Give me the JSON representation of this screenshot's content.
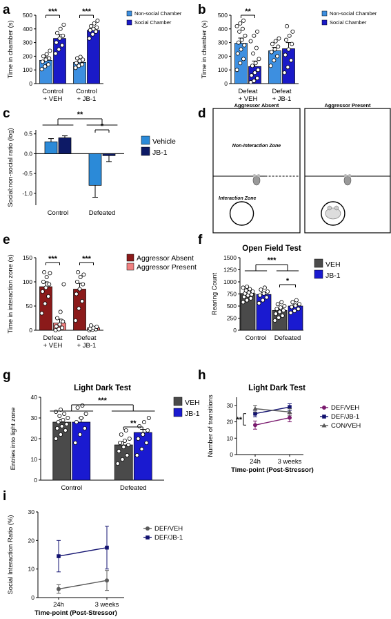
{
  "chart_data": [
    {
      "panel": "a",
      "type": "bar",
      "ylabel": "Time in chamber (s)",
      "ylim": [
        0,
        500
      ],
      "yticks": [
        0,
        100,
        200,
        300,
        400,
        500
      ],
      "categories": [
        "Control\n+ VEH",
        "Control\n+ JB-1"
      ],
      "legend": [
        "Non-social Chamber",
        "Social Chamber"
      ],
      "colors": [
        "#3d8fe0",
        "#1a1ac8"
      ],
      "bars": [
        {
          "group": 0,
          "series": 0,
          "value": 170,
          "err": 25,
          "dots": [
            105,
            125,
            140,
            160,
            175,
            185,
            200,
            215,
            240
          ]
        },
        {
          "group": 0,
          "series": 1,
          "value": 330,
          "err": 28,
          "dots": [
            220,
            250,
            280,
            300,
            330,
            350,
            370,
            400,
            430
          ]
        },
        {
          "group": 1,
          "series": 0,
          "value": 155,
          "err": 18,
          "dots": [
            115,
            130,
            140,
            150,
            165,
            175,
            185,
            195
          ]
        },
        {
          "group": 1,
          "series": 1,
          "value": 390,
          "err": 20,
          "dots": [
            330,
            360,
            380,
            390,
            400,
            410,
            420,
            440,
            460
          ]
        }
      ],
      "sig": [
        {
          "group": 0,
          "text": "***"
        },
        {
          "group": 1,
          "text": "***"
        }
      ]
    },
    {
      "panel": "b",
      "type": "bar",
      "ylabel": "Time in chamber (s)",
      "ylim": [
        0,
        500
      ],
      "yticks": [
        0,
        100,
        200,
        300,
        400,
        500
      ],
      "categories": [
        "Defeat\n+ VEH",
        "Defeat\n+ JB-1"
      ],
      "legend": [
        "Non-social Chamber",
        "Social Chamber"
      ],
      "colors": [
        "#3d8fe0",
        "#1a1ac8"
      ],
      "bars": [
        {
          "group": 0,
          "series": 0,
          "value": 295,
          "err": 38,
          "dots": [
            100,
            150,
            180,
            220,
            250,
            280,
            300,
            320,
            350,
            380,
            400,
            420,
            440,
            460
          ]
        },
        {
          "group": 0,
          "series": 1,
          "value": 125,
          "err": 40,
          "dots": [
            10,
            20,
            40,
            60,
            80,
            100,
            130,
            150,
            180,
            220,
            260,
            310,
            350,
            380
          ]
        },
        {
          "group": 1,
          "series": 0,
          "value": 240,
          "err": 25,
          "dots": [
            130,
            170,
            200,
            230,
            250,
            270,
            290,
            310,
            330
          ]
        },
        {
          "group": 1,
          "series": 1,
          "value": 255,
          "err": 45,
          "dots": [
            80,
            120,
            170,
            210,
            250,
            290,
            320,
            350,
            380,
            420
          ]
        }
      ],
      "sig": [
        {
          "group": 0,
          "text": "**"
        }
      ]
    },
    {
      "panel": "c",
      "type": "bar",
      "ylabel": "Social:non-social ratio (log)",
      "ylim": [
        -1.3,
        0.6
      ],
      "yticks": [
        -1.0,
        -0.5,
        0.0,
        0.5
      ],
      "categories": [
        "Control",
        "Defeated"
      ],
      "legend": [
        "Vehicle",
        "JB-1"
      ],
      "colors": [
        "#2b8ad8",
        "#0d1a66"
      ],
      "bars": [
        {
          "group": 0,
          "series": 0,
          "value": 0.3,
          "err": 0.08
        },
        {
          "group": 0,
          "series": 1,
          "value": 0.4,
          "err": 0.05
        },
        {
          "group": 1,
          "series": 0,
          "value": -0.8,
          "err": 0.3
        },
        {
          "group": 1,
          "series": 1,
          "value": -0.05,
          "err": 0.15
        }
      ],
      "sig_outer": "**",
      "sig_inner": "*"
    },
    {
      "panel": "d",
      "type": "diagram",
      "boxes": [
        {
          "title": "Aggressor Absent",
          "upper": "Non-Interaction Zone",
          "lower": "Interaction Zone"
        },
        {
          "title": "Aggressor Present"
        }
      ]
    },
    {
      "panel": "e",
      "type": "bar",
      "ylabel": "Time in interaction zone (s)",
      "ylim": [
        0,
        150
      ],
      "yticks": [
        0,
        50,
        100,
        150
      ],
      "categories": [
        "Defeat\n+ VEH",
        "Defeat\n+ JB-1"
      ],
      "legend": [
        "Aggressor Absent",
        "Aggressor Present"
      ],
      "colors": [
        "#8b1a1a",
        "#f08080"
      ],
      "bars": [
        {
          "group": 0,
          "series": 0,
          "value": 90,
          "err": 10,
          "dots": [
            35,
            55,
            70,
            80,
            88,
            95,
            100,
            110,
            118,
            120
          ]
        },
        {
          "group": 0,
          "series": 1,
          "value": 15,
          "err": 8,
          "dots": [
            0,
            2,
            5,
            8,
            12,
            18,
            25,
            38,
            95
          ]
        },
        {
          "group": 1,
          "series": 0,
          "value": 85,
          "err": 12,
          "dots": [
            20,
            45,
            60,
            75,
            85,
            95,
            100,
            110,
            115,
            120
          ]
        },
        {
          "group": 1,
          "series": 1,
          "value": 5,
          "err": 2,
          "dots": [
            0,
            1,
            2,
            3,
            5,
            7,
            10
          ]
        }
      ],
      "sig": [
        {
          "group": 0,
          "text": "***"
        },
        {
          "group": 1,
          "text": "***"
        }
      ]
    },
    {
      "panel": "f",
      "type": "bar",
      "title": "Open Field Test",
      "ylabel": "Rearing Count",
      "ylim": [
        0,
        1500
      ],
      "yticks": [
        0,
        250,
        500,
        750,
        1000,
        1250,
        1500
      ],
      "categories": [
        "Control",
        "Defeated"
      ],
      "legend": [
        "VEH",
        "JB-1"
      ],
      "colors": [
        "#4a4a4a",
        "#1a1ad0"
      ],
      "bars": [
        {
          "group": 0,
          "series": 0,
          "value": 760,
          "err": 30,
          "dots": [
            580,
            620,
            660,
            690,
            720,
            740,
            760,
            780,
            800,
            820,
            850,
            880,
            900
          ]
        },
        {
          "group": 0,
          "series": 1,
          "value": 740,
          "err": 40,
          "dots": [
            560,
            620,
            680,
            720,
            760,
            800,
            840,
            880
          ]
        },
        {
          "group": 1,
          "series": 0,
          "value": 410,
          "err": 35,
          "dots": [
            200,
            260,
            300,
            340,
            380,
            410,
            440,
            470,
            500,
            540,
            580
          ]
        },
        {
          "group": 1,
          "series": 1,
          "value": 500,
          "err": 30,
          "dots": [
            360,
            400,
            440,
            480,
            510,
            540,
            580,
            620
          ]
        }
      ],
      "sig_outer": "***",
      "sig_inner": "*"
    },
    {
      "panel": "g",
      "type": "bar",
      "title": "Light Dark Test",
      "ylabel": "Entries into light zone",
      "ylim": [
        0,
        40
      ],
      "yticks": [
        0,
        10,
        20,
        30,
        40
      ],
      "categories": [
        "Control",
        "Defeated"
      ],
      "legend": [
        "VEH",
        "JB-1"
      ],
      "colors": [
        "#4a4a4a",
        "#1a1ad0"
      ],
      "bars": [
        {
          "group": 0,
          "series": 0,
          "value": 28,
          "err": 1.2,
          "dots": [
            20,
            22,
            24,
            25,
            26,
            27,
            28,
            29,
            30,
            31,
            32,
            33,
            34
          ]
        },
        {
          "group": 0,
          "series": 1,
          "value": 28,
          "err": 2,
          "dots": [
            18,
            22,
            25,
            28,
            30,
            32,
            35,
            36
          ]
        },
        {
          "group": 1,
          "series": 0,
          "value": 17,
          "err": 1.5,
          "dots": [
            8,
            10,
            12,
            14,
            16,
            17,
            18,
            19,
            20,
            22,
            24
          ]
        },
        {
          "group": 1,
          "series": 1,
          "value": 23,
          "err": 1.5,
          "dots": [
            12,
            15,
            18,
            20,
            22,
            24,
            26,
            28,
            30
          ]
        }
      ],
      "sig_outer": "***",
      "sig_inner": "**"
    },
    {
      "panel": "h",
      "type": "line",
      "title": "Light Dark Test",
      "ylabel": "Number of transitions",
      "xlabel": "Time-point (Post-Stressor)",
      "ylim": [
        0,
        35
      ],
      "yticks": [
        0,
        10,
        20,
        30
      ],
      "x": [
        "24h",
        "3 weeks"
      ],
      "series": [
        {
          "name": "DEF/VEH",
          "color": "#7a1a6e",
          "values": [
            18,
            22.5
          ],
          "err": [
            2.5,
            2.5
          ]
        },
        {
          "name": "DEF/JB-1",
          "color": "#121270",
          "values": [
            25,
            29
          ],
          "err": [
            2,
            2
          ]
        },
        {
          "name": "CON/VEH",
          "color": "#5a5a5a",
          "values": [
            28,
            26
          ],
          "err": [
            2,
            2
          ]
        }
      ],
      "sig": "**"
    },
    {
      "panel": "i",
      "type": "line",
      "ylabel": "Social Interaction Ratio (%)",
      "xlabel": "Time-point (Post-Stressor)",
      "ylim": [
        0,
        30
      ],
      "yticks": [
        0,
        10,
        20,
        30
      ],
      "x": [
        "24h",
        "3 weeks"
      ],
      "series": [
        {
          "name": "DEF/VEH",
          "color": "#5a5a5a",
          "values": [
            3,
            6
          ],
          "err": [
            1.5,
            3.5
          ]
        },
        {
          "name": "DEF/JB-1",
          "color": "#121270",
          "values": [
            14.5,
            17.5
          ],
          "err": [
            5.5,
            7.5
          ]
        }
      ]
    }
  ],
  "labels": [
    "a",
    "b",
    "c",
    "d",
    "e",
    "f",
    "g",
    "h",
    "i"
  ]
}
